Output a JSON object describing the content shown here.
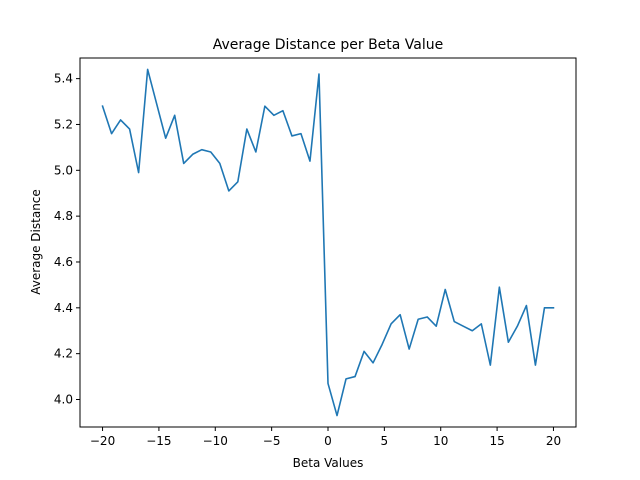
{
  "chart_data": {
    "type": "line",
    "title": "Average Distance per Beta Value",
    "xlabel": "Beta Values",
    "ylabel": "Average Distance",
    "xlim": [
      -22,
      22
    ],
    "ylim": [
      3.88,
      5.49
    ],
    "xticks": [
      -20,
      -15,
      -10,
      -5,
      0,
      5,
      10,
      15,
      20
    ],
    "xtick_labels": [
      "−20",
      "−15",
      "−10",
      "−5",
      "0",
      "5",
      "10",
      "15",
      "20"
    ],
    "yticks": [
      4.0,
      4.2,
      4.4,
      4.6,
      4.8,
      5.0,
      5.2,
      5.4
    ],
    "ytick_labels": [
      "4.0",
      "4.2",
      "4.4",
      "4.6",
      "4.8",
      "5.0",
      "5.2",
      "5.4"
    ],
    "grid": false,
    "legend": "none",
    "series": [
      {
        "color": "#1f77b4",
        "x": [
          -20,
          -19.2,
          -18.4,
          -17.6,
          -16.8,
          -16,
          -15.2,
          -14.4,
          -13.6,
          -12.8,
          -12,
          -11.2,
          -10.4,
          -9.6,
          -8.8,
          -8,
          -7.2,
          -6.4,
          -5.6,
          -4.8,
          -4,
          -3.2,
          -2.4,
          -1.6,
          -0.8,
          0,
          0.8,
          1.6,
          2.4,
          3.2,
          4,
          4.8,
          5.6,
          6.4,
          7.2,
          8,
          8.8,
          9.6,
          10.4,
          11.2,
          12,
          12.8,
          13.6,
          14.4,
          15.2,
          16,
          16.8,
          17.6,
          18.4,
          19.2,
          20
        ],
        "y": [
          5.28,
          5.16,
          5.22,
          5.18,
          4.99,
          5.44,
          5.29,
          5.14,
          5.24,
          5.03,
          5.07,
          5.09,
          5.08,
          5.03,
          4.91,
          4.95,
          5.18,
          5.08,
          5.28,
          5.24,
          5.26,
          5.15,
          5.16,
          5.04,
          5.42,
          4.07,
          3.93,
          4.09,
          4.1,
          4.21,
          4.16,
          4.24,
          4.33,
          4.37,
          4.22,
          4.35,
          4.36,
          4.32,
          4.48,
          4.34,
          4.32,
          4.3,
          4.33,
          4.15,
          4.49,
          4.25,
          4.32,
          4.41,
          4.15,
          4.4,
          4.4
        ]
      }
    ]
  }
}
